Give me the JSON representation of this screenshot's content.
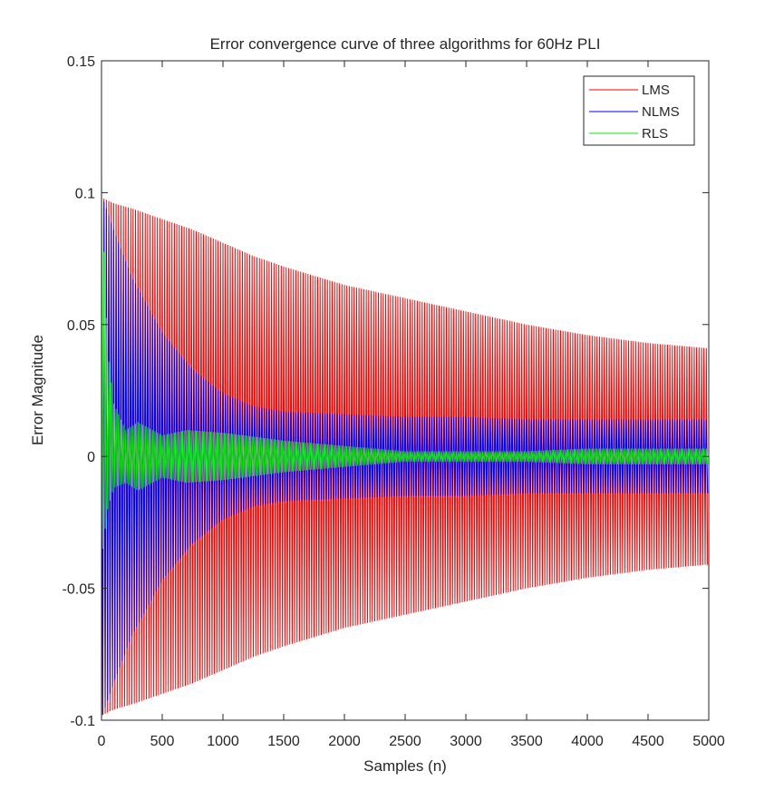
{
  "chart_data": {
    "type": "line",
    "title": "Error convergence curve of three algorithms for 60Hz PLI",
    "xlabel": "Samples (n)",
    "ylabel": "Error Magnitude",
    "xlim": [
      0,
      5000
    ],
    "ylim": [
      -0.1,
      0.15
    ],
    "xticks": [
      0,
      500,
      1000,
      1500,
      2000,
      2500,
      3000,
      3500,
      4000,
      4500,
      5000
    ],
    "xtick_labels": [
      "0",
      "500",
      "1000",
      "1500",
      "2000",
      "2500",
      "3000",
      "3500",
      "4000",
      "4500",
      "5000"
    ],
    "yticks": [
      -0.1,
      -0.05,
      0,
      0.05,
      0.1,
      0.15
    ],
    "ytick_labels": [
      "-0.1",
      "-0.05",
      "0",
      "0.05",
      "0.1",
      "0.15"
    ],
    "grid": false,
    "legend_position": "top-right",
    "cycles_over_range": 250,
    "series": [
      {
        "name": "LMS",
        "color": "#ff0000",
        "envelope": {
          "x": [
            0,
            10,
            100,
            250,
            500,
            750,
            1000,
            1250,
            1500,
            2000,
            2500,
            3000,
            3500,
            4000,
            4500,
            5000
          ],
          "upper": [
            0.098,
            0.098,
            0.096,
            0.094,
            0.09,
            0.086,
            0.081,
            0.076,
            0.072,
            0.065,
            0.06,
            0.055,
            0.05,
            0.046,
            0.043,
            0.041
          ],
          "lower": [
            -0.1,
            -0.098,
            -0.096,
            -0.094,
            -0.09,
            -0.086,
            -0.081,
            -0.076,
            -0.072,
            -0.065,
            -0.06,
            -0.055,
            -0.05,
            -0.046,
            -0.043,
            -0.041
          ]
        }
      },
      {
        "name": "NLMS",
        "color": "#0000ff",
        "envelope": {
          "x": [
            0,
            10,
            100,
            250,
            500,
            750,
            1000,
            1250,
            1500,
            2000,
            2500,
            3000,
            3500,
            4000,
            4500,
            5000
          ],
          "upper": [
            0.098,
            0.098,
            0.086,
            0.068,
            0.047,
            0.033,
            0.024,
            0.019,
            0.017,
            0.016,
            0.015,
            0.015,
            0.014,
            0.014,
            0.014,
            0.014
          ],
          "lower": [
            -0.1,
            -0.098,
            -0.086,
            -0.068,
            -0.047,
            -0.033,
            -0.024,
            -0.019,
            -0.017,
            -0.016,
            -0.015,
            -0.015,
            -0.014,
            -0.014,
            -0.014,
            -0.014
          ]
        }
      },
      {
        "name": "RLS",
        "color": "#00ee00",
        "envelope": {
          "x": [
            0,
            10,
            50,
            100,
            200,
            300,
            500,
            700,
            1000,
            1500,
            2000,
            2500,
            3000,
            3500,
            4000,
            4500,
            5000
          ],
          "upper": [
            0.108,
            0.09,
            0.04,
            0.02,
            0.01,
            0.013,
            0.008,
            0.01,
            0.009,
            0.006,
            0.004,
            0.002,
            0.002,
            0.002,
            0.003,
            0.003,
            0.003
          ],
          "lower": [
            -0.04,
            -0.035,
            -0.02,
            -0.012,
            -0.01,
            -0.013,
            -0.008,
            -0.01,
            -0.009,
            -0.006,
            -0.004,
            -0.002,
            -0.002,
            -0.002,
            -0.003,
            -0.003,
            -0.003
          ]
        }
      }
    ]
  }
}
